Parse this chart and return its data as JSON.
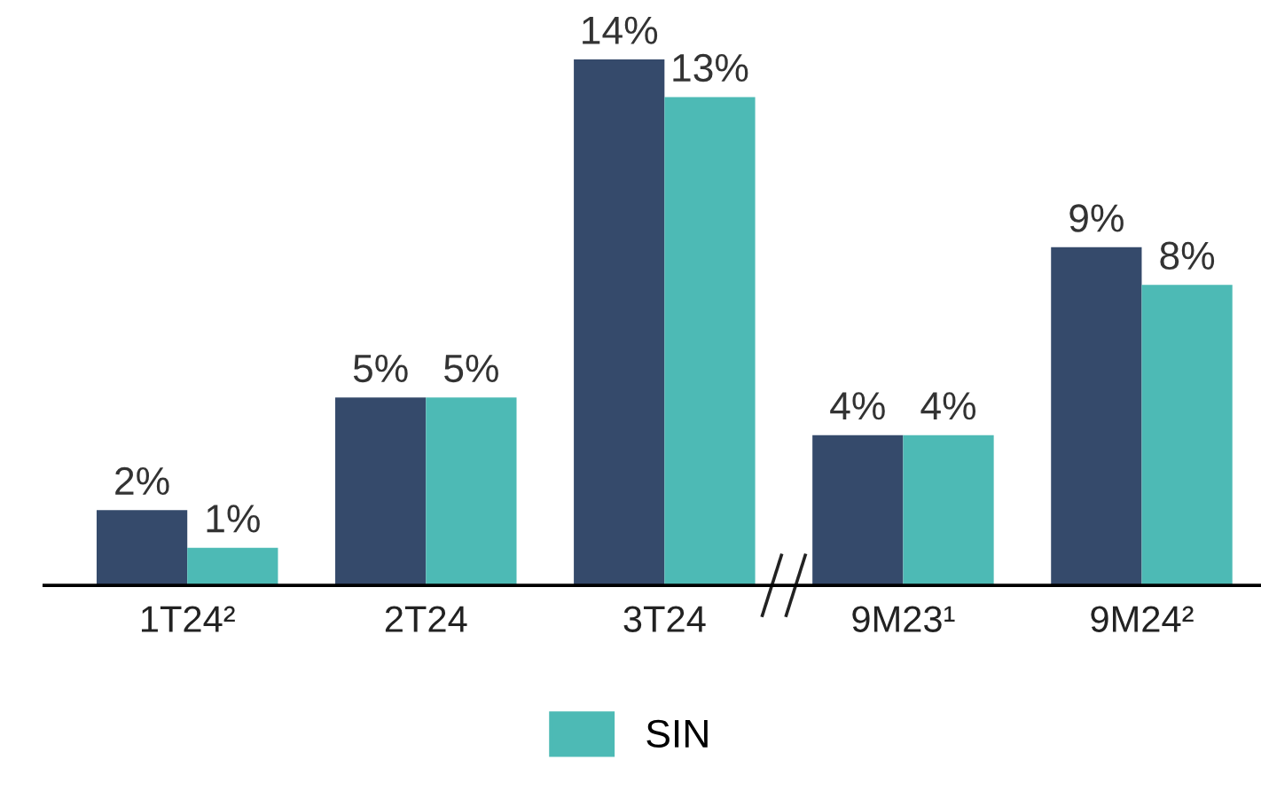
{
  "chart_data": {
    "type": "bar",
    "categories": [
      "1T24²",
      "2T24",
      "3T24",
      "9M23¹",
      "9M24²"
    ],
    "series": [
      {
        "color": "#354a6b",
        "values": [
          2,
          5,
          14,
          4,
          9
        ],
        "value_labels": [
          "2%",
          "5%",
          "14%",
          "4%",
          "9%"
        ]
      },
      {
        "name": "SIN",
        "color": "#4dbab5",
        "values": [
          1,
          5,
          13,
          4,
          8
        ],
        "value_labels": [
          "1%",
          "5%",
          "13%",
          "4%",
          "8%"
        ]
      }
    ],
    "legend": "bottom",
    "grid": false
  }
}
